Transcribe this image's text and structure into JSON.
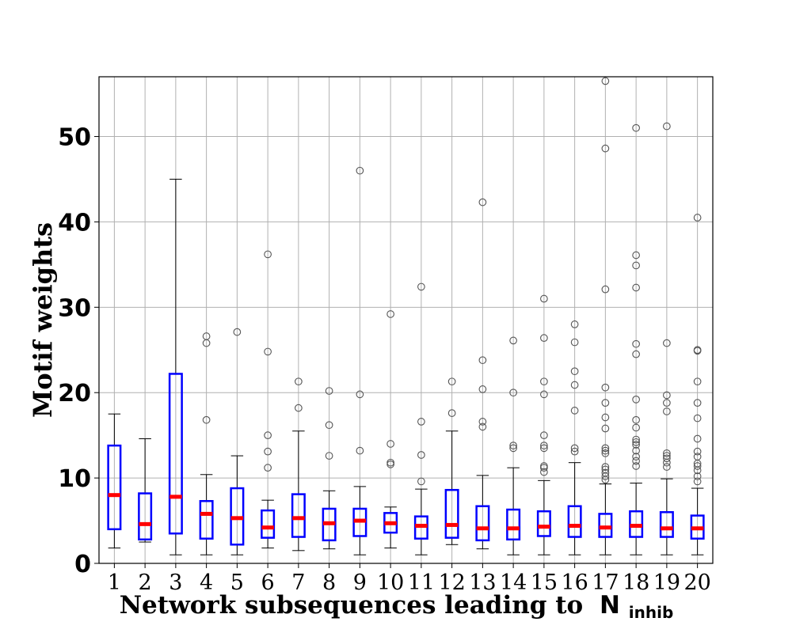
{
  "chart_data": {
    "type": "box",
    "xlabel": "Network subsequences leading to",
    "xlabel_symbol": "N",
    "xlabel_subscript": "inhib",
    "ylabel": "Motif weights",
    "ylim": [
      0,
      57
    ],
    "yticks": [
      0,
      10,
      20,
      30,
      40,
      50
    ],
    "grid": true,
    "colors": {
      "box": "#0000ff",
      "median": "#ff0000",
      "whisker": "#000000",
      "outlier": "#555555",
      "grid": "#b0b0b0"
    },
    "categories": [
      "1",
      "2",
      "3",
      "4",
      "5",
      "6",
      "7",
      "8",
      "9",
      "10",
      "11",
      "12",
      "13",
      "14",
      "15",
      "16",
      "17",
      "18",
      "19",
      "20"
    ],
    "boxes": [
      {
        "label": "1",
        "q1": 4.0,
        "median": 8.0,
        "q3": 13.8,
        "whislo": 1.8,
        "whishi": 17.5,
        "fliers": []
      },
      {
        "label": "2",
        "q1": 2.8,
        "median": 4.6,
        "q3": 8.2,
        "whislo": 2.5,
        "whishi": 14.6,
        "fliers": []
      },
      {
        "label": "3",
        "q1": 3.5,
        "median": 7.8,
        "q3": 22.2,
        "whislo": 1.0,
        "whishi": 45.0,
        "fliers": []
      },
      {
        "label": "4",
        "q1": 2.9,
        "median": 5.8,
        "q3": 7.3,
        "whislo": 1.0,
        "whishi": 10.4,
        "fliers": [
          16.8,
          25.8,
          26.6
        ]
      },
      {
        "label": "5",
        "q1": 2.2,
        "median": 5.3,
        "q3": 8.8,
        "whislo": 1.0,
        "whishi": 12.6,
        "fliers": [
          27.1
        ]
      },
      {
        "label": "6",
        "q1": 3.0,
        "median": 4.2,
        "q3": 6.2,
        "whislo": 1.8,
        "whishi": 7.4,
        "fliers": [
          11.2,
          13.1,
          15.0,
          24.8,
          36.2
        ]
      },
      {
        "label": "7",
        "q1": 3.1,
        "median": 5.3,
        "q3": 8.1,
        "whislo": 1.5,
        "whishi": 15.5,
        "fliers": [
          18.2,
          21.3
        ]
      },
      {
        "label": "8",
        "q1": 2.7,
        "median": 4.7,
        "q3": 6.4,
        "whislo": 1.7,
        "whishi": 8.5,
        "fliers": [
          12.6,
          16.2,
          20.2
        ]
      },
      {
        "label": "9",
        "q1": 3.2,
        "median": 5.0,
        "q3": 6.4,
        "whislo": 1.0,
        "whishi": 9.0,
        "fliers": [
          13.2,
          19.8,
          46.0
        ]
      },
      {
        "label": "10",
        "q1": 3.6,
        "median": 4.7,
        "q3": 5.9,
        "whislo": 1.8,
        "whishi": 6.6,
        "fliers": [
          11.6,
          11.8,
          14.0,
          29.2
        ]
      },
      {
        "label": "11",
        "q1": 2.9,
        "median": 4.4,
        "q3": 5.5,
        "whislo": 1.0,
        "whishi": 8.7,
        "fliers": [
          9.6,
          12.7,
          16.6,
          32.4
        ]
      },
      {
        "label": "12",
        "q1": 3.0,
        "median": 4.5,
        "q3": 8.6,
        "whislo": 2.2,
        "whishi": 15.5,
        "fliers": [
          17.6,
          21.3
        ]
      },
      {
        "label": "13",
        "q1": 2.7,
        "median": 4.1,
        "q3": 6.7,
        "whislo": 1.7,
        "whishi": 10.3,
        "fliers": [
          16.0,
          16.6,
          20.4,
          23.8,
          42.3
        ]
      },
      {
        "label": "14",
        "q1": 2.8,
        "median": 4.1,
        "q3": 6.3,
        "whislo": 1.0,
        "whishi": 11.2,
        "fliers": [
          13.5,
          13.8,
          20.0,
          26.1
        ]
      },
      {
        "label": "15",
        "q1": 3.2,
        "median": 4.3,
        "q3": 6.1,
        "whislo": 1.0,
        "whishi": 9.7,
        "fliers": [
          10.7,
          11.2,
          11.4,
          13.5,
          13.8,
          15.0,
          19.8,
          21.3,
          26.4,
          31.0
        ]
      },
      {
        "label": "16",
        "q1": 3.1,
        "median": 4.4,
        "q3": 6.7,
        "whislo": 1.0,
        "whishi": 11.8,
        "fliers": [
          13.1,
          13.5,
          17.9,
          20.9,
          22.5,
          25.9,
          28.0
        ]
      },
      {
        "label": "17",
        "q1": 3.1,
        "median": 4.2,
        "q3": 5.8,
        "whislo": 1.0,
        "whishi": 9.3,
        "fliers": [
          9.8,
          10.2,
          10.6,
          11.0,
          11.3,
          12.9,
          13.2,
          13.5,
          15.8,
          17.1,
          18.8,
          20.6,
          32.1,
          48.6,
          56.5
        ]
      },
      {
        "label": "18",
        "q1": 3.1,
        "median": 4.4,
        "q3": 6.1,
        "whislo": 1.0,
        "whishi": 9.4,
        "fliers": [
          11.4,
          12.0,
          12.5,
          13.2,
          13.9,
          14.2,
          14.5,
          15.9,
          16.8,
          19.2,
          24.5,
          25.7,
          32.3,
          34.9,
          36.1,
          51.0
        ]
      },
      {
        "label": "19",
        "q1": 3.1,
        "median": 4.1,
        "q3": 6.0,
        "whislo": 1.0,
        "whishi": 9.9,
        "fliers": [
          11.3,
          11.8,
          12.3,
          12.6,
          12.9,
          17.8,
          18.8,
          19.7,
          25.8,
          51.2
        ]
      },
      {
        "label": "20",
        "q1": 2.9,
        "median": 4.1,
        "q3": 5.6,
        "whislo": 1.0,
        "whishi": 8.8,
        "fliers": [
          9.6,
          10.2,
          10.9,
          11.4,
          11.7,
          12.5,
          13.1,
          14.6,
          17.0,
          18.8,
          21.3,
          24.9,
          25.0,
          40.5
        ]
      }
    ]
  }
}
